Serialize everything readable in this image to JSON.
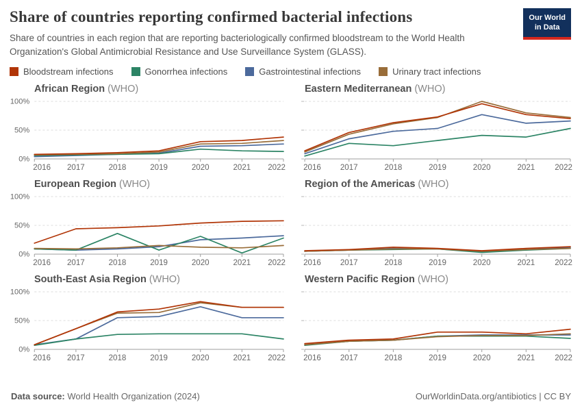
{
  "header": {
    "title": "Share of countries reporting confirmed bacterial infections",
    "subtitle": "Share of countries in each region that are reporting bacteriologically confirmed bloodstream to the World Health Organization's Global Antimicrobial Resistance and Use Surveillance System (GLASS).",
    "logo": {
      "line1": "Our World",
      "line2": "in Data",
      "bg_color": "#12305c",
      "stripe_color": "#d5281e"
    }
  },
  "legend": {
    "items": [
      {
        "label": "Bloodstream infections",
        "color": "#b13507"
      },
      {
        "label": "Gonorrhea infections",
        "color": "#2c8465"
      },
      {
        "label": "Gastrointestinal infections",
        "color": "#4c6a9c"
      },
      {
        "label": "Urinary tract infections",
        "color": "#996d39"
      }
    ]
  },
  "chart_data": {
    "type": "line",
    "x": [
      2016,
      2017,
      2018,
      2019,
      2020,
      2021,
      2022
    ],
    "ylim": [
      0,
      100
    ],
    "yticks": [
      0,
      50,
      100
    ],
    "ytick_labels": [
      "0%",
      "50%",
      "100%"
    ],
    "grid": "dashed horizontal at 50% and 100%",
    "legend_position": "top",
    "panels": [
      {
        "title": "African Region",
        "suffix": "(WHO)",
        "series": [
          {
            "name": "Bloodstream infections",
            "values": [
              8,
              9,
              11,
              14,
              30,
              32,
              38
            ]
          },
          {
            "name": "Gonorrhea infections",
            "values": [
              6,
              7,
              8,
              9,
              17,
              14,
              13
            ]
          },
          {
            "name": "Gastrointestinal infections",
            "values": [
              4,
              6,
              8,
              10,
              22,
              23,
              26
            ]
          },
          {
            "name": "Urinary tract infections",
            "values": [
              7,
              8,
              9,
              12,
              26,
              27,
              32
            ]
          }
        ]
      },
      {
        "title": "Eastern Mediterranean",
        "suffix": "(WHO)",
        "series": [
          {
            "name": "Bloodstream infections",
            "values": [
              14,
              46,
              63,
              73,
              96,
              77,
              70
            ]
          },
          {
            "name": "Gonorrhea infections",
            "values": [
              5,
              27,
              23,
              32,
              41,
              38,
              53
            ]
          },
          {
            "name": "Gastrointestinal infections",
            "values": [
              9,
              35,
              48,
              53,
              77,
              62,
              66
            ]
          },
          {
            "name": "Urinary tract infections",
            "values": [
              12,
              43,
              61,
              72,
              100,
              80,
              72
            ]
          }
        ]
      },
      {
        "title": "European Region",
        "suffix": "(WHO)",
        "series": [
          {
            "name": "Bloodstream infections",
            "values": [
              19,
              44,
              46,
              49,
              54,
              57,
              58
            ]
          },
          {
            "name": "Gonorrhea infections",
            "values": [
              9,
              7,
              36,
              7,
              31,
              2,
              28
            ]
          },
          {
            "name": "Gastrointestinal infections",
            "values": [
              9,
              7,
              9,
              13,
              25,
              28,
              32
            ]
          },
          {
            "name": "Urinary tract infections",
            "values": [
              10,
              9,
              11,
              15,
              12,
              11,
              15
            ]
          }
        ]
      },
      {
        "title": "Region of the Americas",
        "suffix": "(WHO)",
        "series": [
          {
            "name": "Bloodstream infections",
            "values": [
              6,
              8,
              12,
              10,
              6,
              10,
              13
            ]
          },
          {
            "name": "Gonorrhea infections",
            "values": [
              5,
              7,
              8,
              9,
              3,
              7,
              10
            ]
          },
          {
            "name": "Gastrointestinal infections",
            "values": [
              5,
              7,
              10,
              9,
              4,
              8,
              12
            ]
          },
          {
            "name": "Urinary tract infections",
            "values": [
              5,
              7,
              9,
              9,
              5,
              8,
              10
            ]
          }
        ]
      },
      {
        "title": "South-East Asia Region",
        "suffix": "(WHO)",
        "series": [
          {
            "name": "Bloodstream infections",
            "values": [
              8,
              36,
              65,
              70,
              83,
              73,
              73
            ]
          },
          {
            "name": "Gonorrhea infections",
            "values": [
              7,
              18,
              26,
              27,
              27,
              27,
              18
            ]
          },
          {
            "name": "Gastrointestinal infections",
            "values": [
              8,
              18,
              55,
              57,
              74,
              55,
              55
            ]
          },
          {
            "name": "Urinary tract infections",
            "values": [
              8,
              36,
              63,
              64,
              81,
              73,
              73
            ]
          }
        ]
      },
      {
        "title": "Western Pacific Region",
        "suffix": "(WHO)",
        "series": [
          {
            "name": "Bloodstream infections",
            "values": [
              10,
              16,
              18,
              30,
              30,
              27,
              35
            ]
          },
          {
            "name": "Gonorrhea infections",
            "values": [
              7,
              14,
              16,
              23,
              23,
              23,
              19
            ]
          },
          {
            "name": "Gastrointestinal infections",
            "values": [
              8,
              14,
              16,
              23,
              25,
              25,
              25
            ]
          },
          {
            "name": "Urinary tract infections",
            "values": [
              8,
              14,
              16,
              22,
              24,
              24,
              27
            ]
          }
        ]
      }
    ]
  },
  "footer": {
    "source_label": "Data source:",
    "source_text": "World Health Organization (2024)",
    "credit": "OurWorldinData.org/antibiotics | CC BY"
  }
}
